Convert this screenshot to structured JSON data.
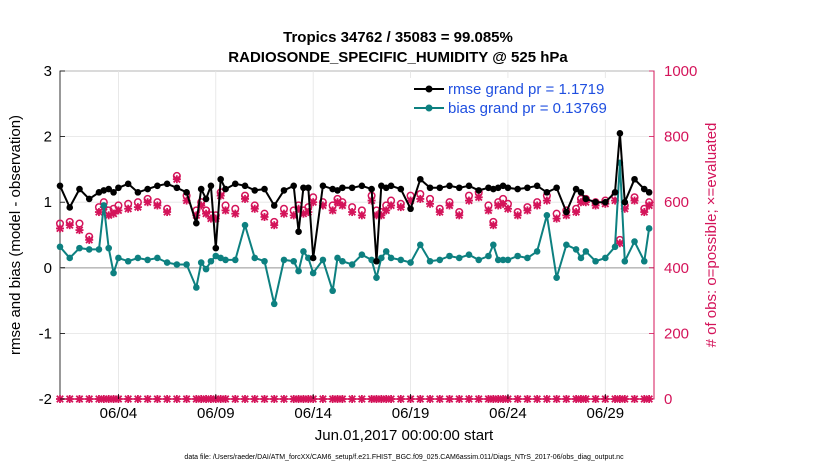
{
  "chart_data": {
    "type": "line",
    "title": "Tropics 34762 / 35083 = 99.085%",
    "subtitle": "RADIOSONDE_SPECIFIC_HUMIDITY @ 525 hPa",
    "xlabel": "Jun.01,2017 00:00:00 start",
    "ylabel_left": "rmse and bias (model - observation)",
    "ylabel_right": "# of obs: o=possible; ×=evaluated",
    "xlim": [
      1,
      31.5
    ],
    "ylim_left": [
      -2,
      3
    ],
    "ylim_right": [
      0,
      1000
    ],
    "x_ticks": [
      4,
      9,
      14,
      19,
      24,
      29
    ],
    "x_tick_labels": [
      "06/04",
      "06/09",
      "06/14",
      "06/19",
      "06/24",
      "06/29"
    ],
    "y_ticks_left": [
      -2,
      -1,
      0,
      1,
      2,
      3
    ],
    "y_ticks_right": [
      0,
      200,
      400,
      600,
      800,
      1000
    ],
    "zero_line": 0,
    "x": [
      1.0,
      1.5,
      2.0,
      2.5,
      3.0,
      3.25,
      3.5,
      3.75,
      4.0,
      4.5,
      5.0,
      5.5,
      6.0,
      6.5,
      7.0,
      7.5,
      8.0,
      8.25,
      8.5,
      8.75,
      9.0,
      9.25,
      9.5,
      10.0,
      10.5,
      11.0,
      11.5,
      12.0,
      12.5,
      13.0,
      13.25,
      13.5,
      13.75,
      14.0,
      14.5,
      15.0,
      15.25,
      15.5,
      16.0,
      16.5,
      17.0,
      17.25,
      17.5,
      17.75,
      18.0,
      18.5,
      19.0,
      19.5,
      20.0,
      20.5,
      21.0,
      21.5,
      22.0,
      22.5,
      23.0,
      23.25,
      23.5,
      23.75,
      24.0,
      24.5,
      25.0,
      25.5,
      26.0,
      26.5,
      27.0,
      27.5,
      27.75,
      28.0,
      28.5,
      29.0,
      29.5,
      29.75,
      30.0,
      30.5,
      31.0,
      31.25
    ],
    "series": [
      {
        "name": "rmse",
        "legend": "rmse grand pr = 1.1719",
        "color": "#000000",
        "values": [
          1.25,
          0.92,
          1.2,
          1.05,
          1.15,
          1.18,
          1.2,
          1.15,
          1.22,
          1.28,
          1.15,
          1.2,
          1.25,
          1.28,
          1.22,
          1.15,
          0.68,
          1.2,
          1.05,
          1.25,
          0.3,
          1.35,
          1.2,
          1.28,
          1.25,
          1.18,
          1.2,
          0.95,
          1.18,
          1.25,
          0.55,
          1.22,
          1.22,
          0.15,
          1.25,
          1.2,
          1.18,
          1.22,
          1.22,
          1.25,
          1.2,
          0.1,
          1.25,
          1.22,
          1.25,
          1.2,
          0.9,
          1.35,
          1.22,
          1.22,
          1.25,
          1.22,
          1.25,
          1.18,
          1.22,
          1.2,
          1.22,
          1.25,
          1.22,
          1.2,
          1.22,
          1.25,
          1.15,
          1.22,
          0.85,
          1.2,
          1.15,
          1.05,
          1.0,
          1.0,
          1.15,
          2.05,
          1.0,
          1.35,
          1.2,
          1.15
        ]
      },
      {
        "name": "bias",
        "legend": "bias grand pr = 0.13769",
        "color": "#0d8080",
        "values": [
          0.32,
          0.15,
          0.3,
          0.28,
          0.28,
          0.95,
          0.3,
          -0.08,
          0.15,
          0.1,
          0.15,
          0.12,
          0.15,
          0.08,
          0.05,
          0.05,
          -0.3,
          0.08,
          -0.02,
          0.1,
          0.18,
          0.15,
          0.12,
          0.12,
          0.65,
          0.15,
          0.1,
          -0.55,
          0.12,
          0.1,
          -0.05,
          0.25,
          0.15,
          -0.08,
          0.12,
          -0.35,
          0.15,
          0.1,
          0.05,
          0.2,
          0.12,
          -0.15,
          0.15,
          0.25,
          0.15,
          0.12,
          0.08,
          0.35,
          0.1,
          0.12,
          0.18,
          0.15,
          0.2,
          0.12,
          0.18,
          0.35,
          0.12,
          0.12,
          0.12,
          0.18,
          0.15,
          0.25,
          0.8,
          -0.15,
          0.35,
          0.28,
          0.15,
          0.25,
          0.1,
          0.15,
          0.32,
          1.6,
          0.1,
          0.4,
          0.1,
          0.6
        ]
      }
    ],
    "obs_possible": {
      "name": "possible",
      "marker": "o",
      "color": "#d4145a",
      "values": [
        535,
        540,
        535,
        495,
        585,
        600,
        575,
        580,
        590,
        595,
        600,
        610,
        600,
        580,
        680,
        620,
        575,
        600,
        575,
        560,
        560,
        630,
        590,
        580,
        620,
        590,
        565,
        540,
        580,
        575,
        590,
        575,
        585,
        615,
        600,
        590,
        610,
        600,
        585,
        575,
        620,
        575,
        570,
        590,
        605,
        595,
        620,
        625,
        610,
        580,
        600,
        570,
        620,
        630,
        590,
        540,
        600,
        610,
        595,
        570,
        585,
        600,
        620,
        565,
        575,
        580,
        610,
        610,
        600,
        605,
        620,
        485,
        590,
        615,
        580,
        600
      ]
    },
    "obs_evaluated": {
      "name": "evaluated",
      "marker": "x",
      "color": "#d4145a",
      "values": [
        520,
        530,
        515,
        485,
        570,
        585,
        560,
        565,
        575,
        580,
        585,
        600,
        590,
        570,
        670,
        605,
        560,
        590,
        565,
        550,
        550,
        620,
        575,
        565,
        610,
        580,
        555,
        530,
        565,
        560,
        580,
        565,
        570,
        600,
        590,
        575,
        600,
        590,
        570,
        560,
        605,
        560,
        560,
        575,
        590,
        585,
        605,
        610,
        595,
        570,
        590,
        560,
        605,
        615,
        575,
        530,
        590,
        595,
        580,
        560,
        575,
        590,
        605,
        550,
        560,
        570,
        600,
        600,
        590,
        595,
        605,
        475,
        580,
        605,
        570,
        590
      ]
    },
    "bottom_counts": {
      "values": [
        0,
        0,
        0,
        0,
        0,
        0,
        0,
        0,
        0,
        0,
        0,
        0,
        0,
        0,
        0,
        0,
        0,
        0,
        0,
        0,
        0,
        0,
        0,
        0,
        0,
        0,
        0,
        0,
        0,
        0,
        0,
        0,
        0,
        0,
        0,
        0,
        0,
        0,
        0,
        0,
        0,
        0,
        0,
        0,
        0,
        0,
        0,
        0,
        0,
        0,
        0,
        0,
        0,
        0,
        0,
        0,
        0,
        0,
        0,
        0,
        0,
        0,
        0,
        0,
        0,
        0,
        0,
        0,
        0,
        0,
        0,
        0,
        0,
        0,
        0,
        0
      ]
    },
    "datafile_note": "data file: /Users/raeder/DAI/ATM_forcXX/CAM6_setup/f.e21.FHIST_BGC.f09_025.CAM6assim.011/Diags_NTrS_2017-06/obs_diag_output.nc"
  }
}
